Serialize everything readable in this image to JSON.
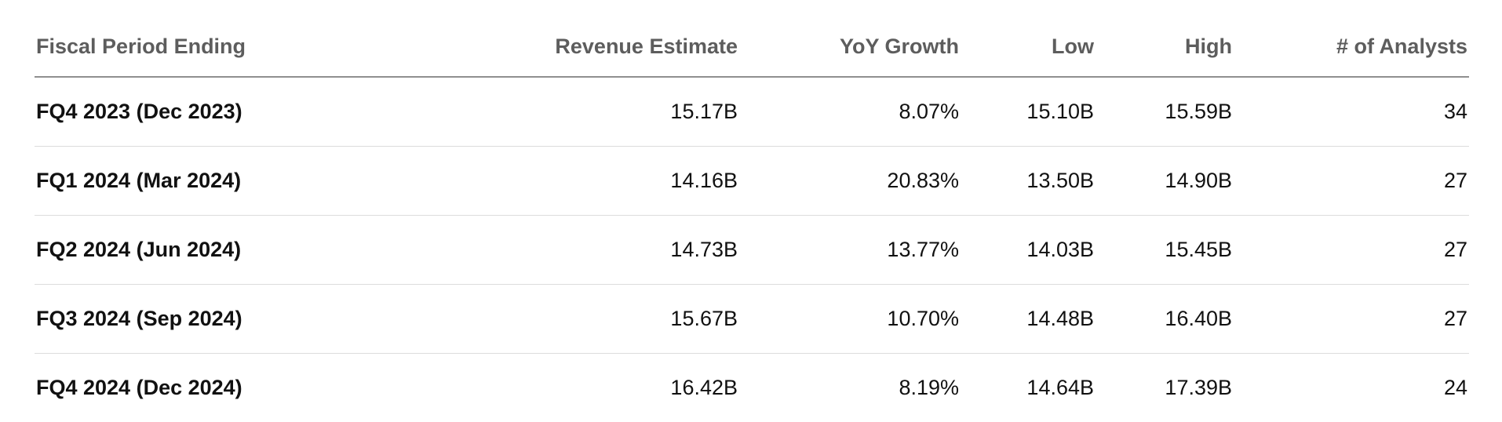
{
  "table": {
    "headers": [
      {
        "key": "period",
        "label": "Fiscal Period Ending"
      },
      {
        "key": "revenue",
        "label": "Revenue Estimate"
      },
      {
        "key": "yoy",
        "label": "YoY Growth"
      },
      {
        "key": "low",
        "label": "Low"
      },
      {
        "key": "high",
        "label": "High"
      },
      {
        "key": "analysts",
        "label": "# of Analysts"
      }
    ],
    "rows": [
      {
        "period": "FQ4 2023 (Dec 2023)",
        "revenue": "15.17B",
        "yoy": "8.07%",
        "low": "15.10B",
        "high": "15.59B",
        "analysts": "34"
      },
      {
        "period": "FQ1 2024 (Mar 2024)",
        "revenue": "14.16B",
        "yoy": "20.83%",
        "low": "13.50B",
        "high": "14.90B",
        "analysts": "27"
      },
      {
        "period": "FQ2 2024 (Jun 2024)",
        "revenue": "14.73B",
        "yoy": "13.77%",
        "low": "14.03B",
        "high": "15.45B",
        "analysts": "27"
      },
      {
        "period": "FQ3 2024 (Sep 2024)",
        "revenue": "15.67B",
        "yoy": "10.70%",
        "low": "14.48B",
        "high": "16.40B",
        "analysts": "27"
      },
      {
        "period": "FQ4 2024 (Dec 2024)",
        "revenue": "16.42B",
        "yoy": "8.19%",
        "low": "14.64B",
        "high": "17.39B",
        "analysts": "24"
      }
    ]
  },
  "colors": {
    "header_text": "#5d5d5d",
    "body_text": "#111111",
    "header_rule": "#8f8f8f",
    "row_rule": "#dcdcdc"
  }
}
